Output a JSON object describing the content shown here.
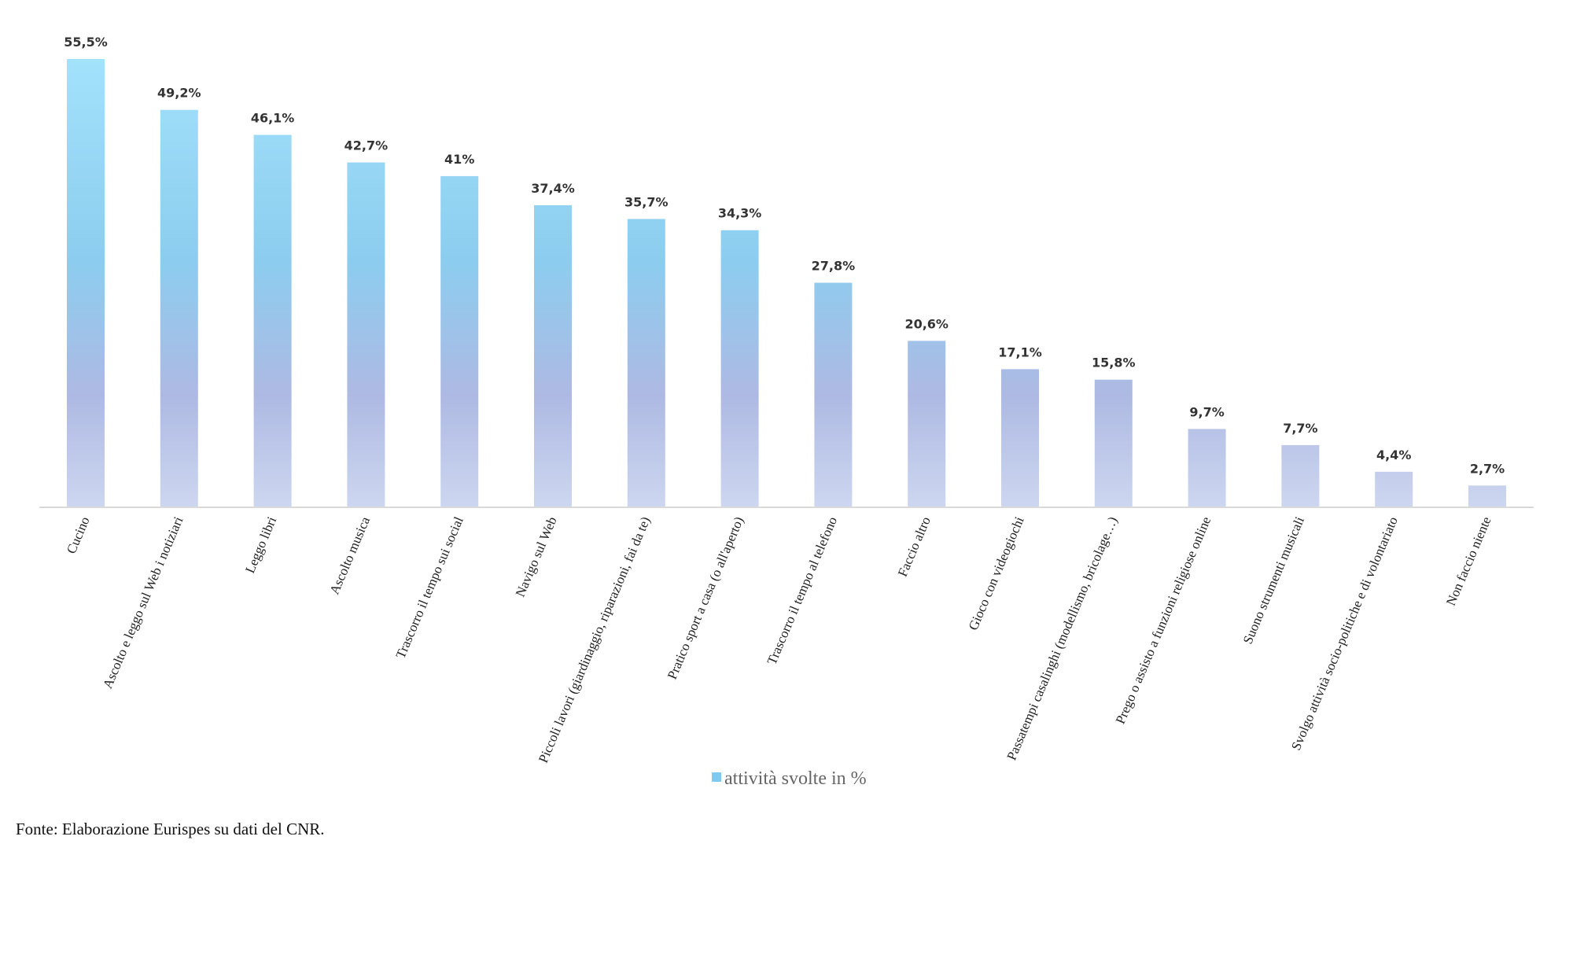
{
  "chart_data": {
    "type": "bar",
    "categories": [
      "Cucino",
      "Ascolto e leggo sul Web i notiziari",
      "Leggo libri",
      "Ascolto musica",
      "Trascorro il tempo sui social",
      "Navigo sul Web",
      "Piccoli lavori (giardinaggio, riparazioni, fai da te)",
      "Pratico sport a casa (o all'aperto)",
      "Trascorro il tempo al telefono",
      "Faccio altro",
      "Gioco con videogiochi",
      "Passatempi casalinghi (modellismo, bricolage…)",
      "Prego o assisto a funzioni religiose online",
      "Suono strumenti musicali",
      "Svolgo attività socio-politiche e di volontariato",
      "Non faccio niente"
    ],
    "series": [
      {
        "name": "attività svolte in %",
        "values": [
          55.5,
          49.2,
          46.1,
          42.7,
          41,
          37.4,
          35.7,
          34.3,
          27.8,
          20.6,
          17.1,
          15.8,
          9.7,
          7.7,
          4.4,
          2.7
        ]
      }
    ],
    "data_labels": [
      "55,5%",
      "49,2%",
      "46,1%",
      "42,7%",
      "41%",
      "37,4%",
      "35,7%",
      "34,3%",
      "27,8%",
      "20,6%",
      "17,1%",
      "15,8%",
      "9,7%",
      "7,7%",
      "4,4%",
      "2,7%"
    ],
    "ylim": [
      0,
      55.5
    ],
    "grid": false,
    "legend_position": "bottom",
    "colors": {
      "bar_top": "#a3e2fb",
      "bar_mid": "#8ccdef",
      "bar_lower": "#aeb9e3",
      "bar_bottom": "#cdd7f0",
      "legend_marker": "#7ecbef",
      "axis": "#d9d9d9"
    }
  },
  "legend": {
    "label": "attività svolte in %"
  },
  "source": "Fonte: Elaborazione Eurispes su dati del CNR."
}
